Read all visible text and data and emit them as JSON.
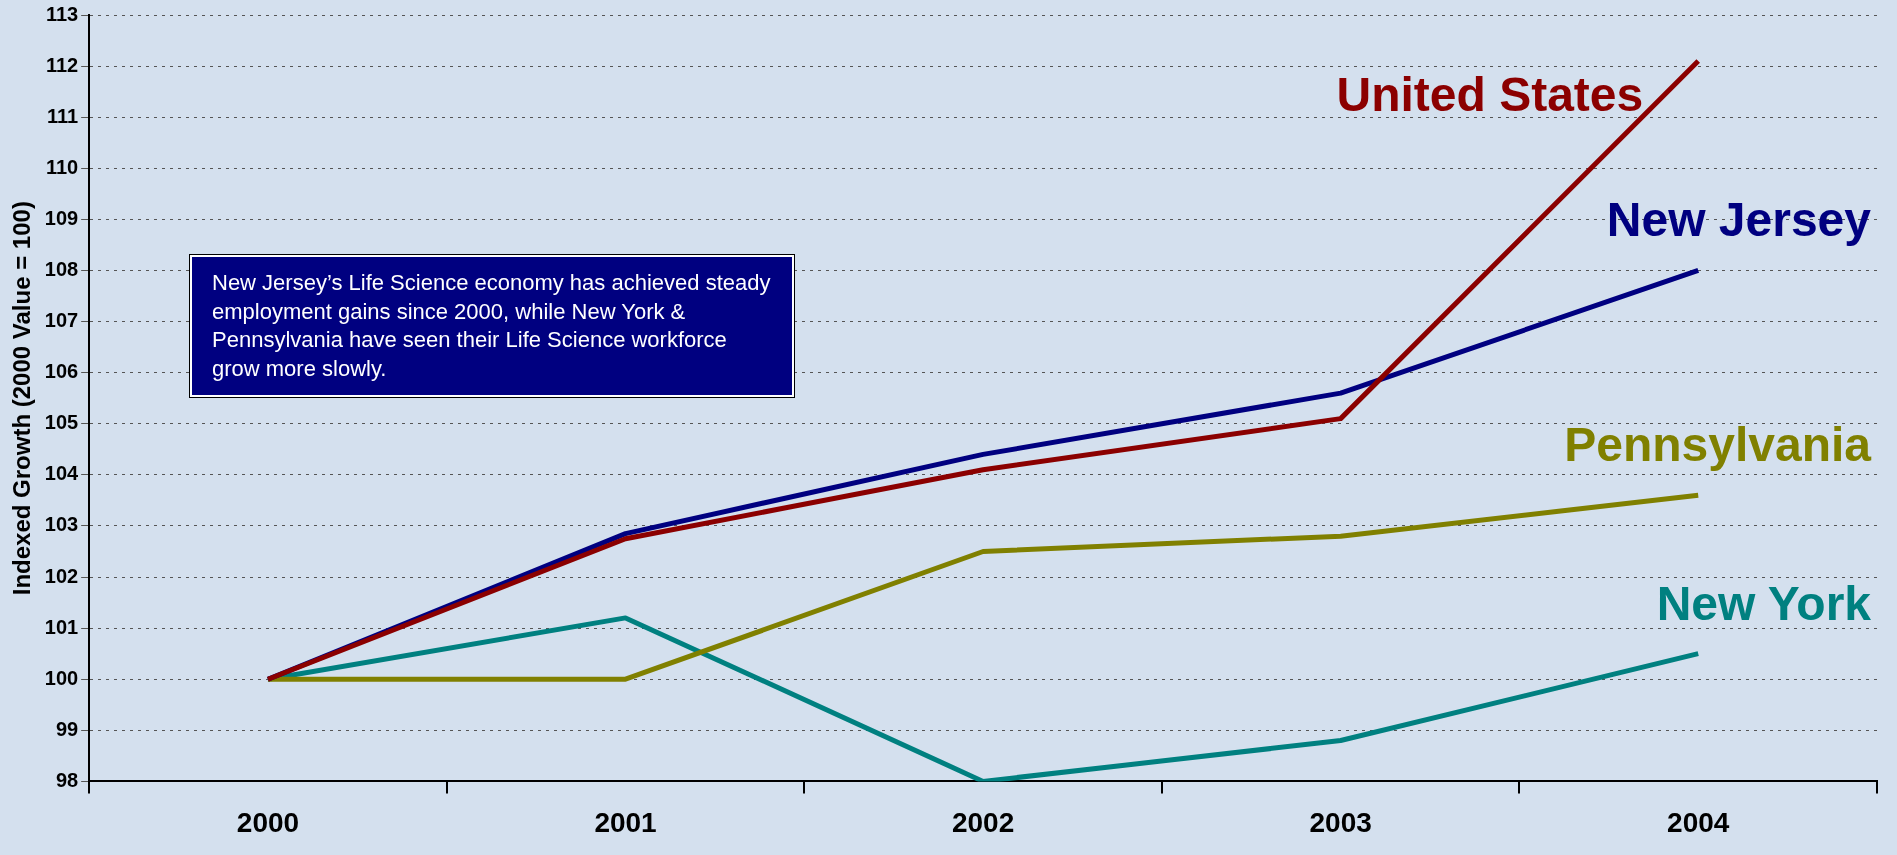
{
  "chart_data": {
    "type": "line",
    "ylabel": "Indexed Growth (2000 Value = 100)",
    "categories": [
      "2000",
      "2001",
      "2002",
      "2003",
      "2004"
    ],
    "series": [
      {
        "name": "United States",
        "color": "#8b0000",
        "values": [
          100,
          102.75,
          104.1,
          105.1,
          112.1
        ]
      },
      {
        "name": "New Jersey",
        "color": "#000080",
        "values": [
          100,
          102.85,
          104.4,
          105.6,
          108.0
        ]
      },
      {
        "name": "Pennsylvania",
        "color": "#808000",
        "values": [
          100,
          100,
          102.5,
          102.8,
          103.6
        ]
      },
      {
        "name": "New York",
        "color": "#008080",
        "values": [
          100,
          101.2,
          98.0,
          98.8,
          100.5
        ]
      }
    ],
    "ylim": [
      98,
      113
    ],
    "yticks": [
      98,
      99,
      100,
      101,
      102,
      103,
      104,
      105,
      106,
      107,
      108,
      109,
      110,
      111,
      112,
      113
    ],
    "grid": "y",
    "legend": false,
    "marker": "none",
    "line_style": "solid",
    "annotations": [
      "New Jersey’s Life Science economy has achieved steady employment gains since 2000, while New York & Pennsylvania have seen their Life Science workforce grow more slowly."
    ]
  }
}
